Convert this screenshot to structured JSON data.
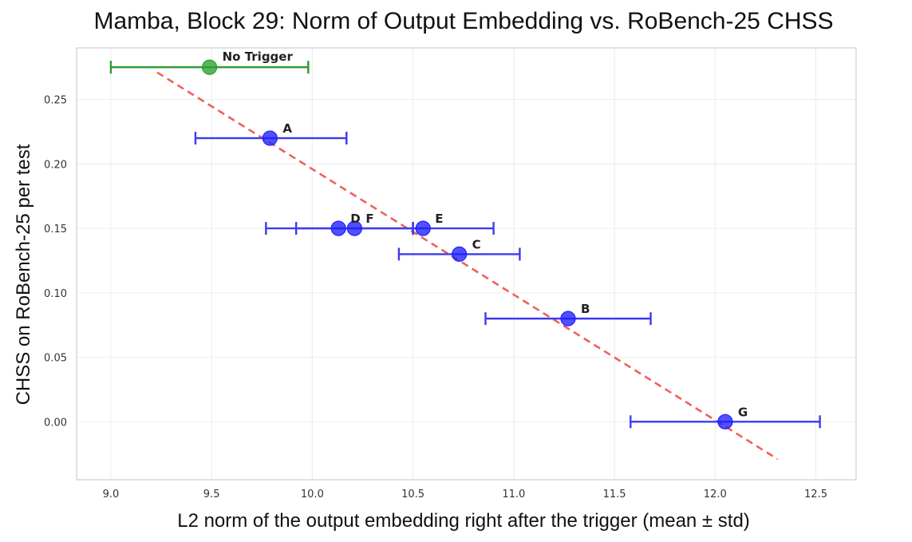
{
  "chart_data": {
    "type": "scatter",
    "title": "Mamba, Block 29: Norm of Output Embedding vs. RoBench-25 CHSS",
    "xlabel": "L2 norm of the output embedding right after the trigger (mean ± std)",
    "ylabel": "CHSS on RoBench-25 per test",
    "xlim": [
      8.83,
      12.7
    ],
    "ylim": [
      -0.045,
      0.29
    ],
    "xticks": [
      "9.0",
      "9.5",
      "10.0",
      "10.5",
      "11.0",
      "11.5",
      "12.0",
      "12.5"
    ],
    "xtick_values": [
      9.0,
      9.5,
      10.0,
      10.5,
      11.0,
      11.5,
      12.0,
      12.5
    ],
    "yticks": [
      "0.00",
      "0.05",
      "0.10",
      "0.15",
      "0.20",
      "0.25"
    ],
    "ytick_values": [
      0.0,
      0.05,
      0.1,
      0.15,
      0.2,
      0.25
    ],
    "grid": true,
    "points": [
      {
        "label": "No Trigger",
        "x": 9.49,
        "y": 0.275,
        "xerr_low": 9.0,
        "xerr_high": 9.98,
        "color": "#2ca02c"
      },
      {
        "label": "A",
        "x": 9.79,
        "y": 0.22,
        "xerr_low": 9.42,
        "xerr_high": 10.17,
        "color": "#1f1fff"
      },
      {
        "label": "D",
        "x": 10.13,
        "y": 0.15,
        "xerr_low": 9.77,
        "xerr_high": 10.5,
        "color": "#1f1fff"
      },
      {
        "label": "F",
        "x": 10.21,
        "y": 0.15,
        "xerr_low": 9.92,
        "xerr_high": 10.5,
        "color": "#1f1fff"
      },
      {
        "label": "E",
        "x": 10.55,
        "y": 0.15,
        "xerr_low": 10.5,
        "xerr_high": 10.9,
        "color": "#1f1fff"
      },
      {
        "label": "C",
        "x": 10.73,
        "y": 0.13,
        "xerr_low": 10.43,
        "xerr_high": 11.03,
        "color": "#1f1fff"
      },
      {
        "label": "B",
        "x": 11.27,
        "y": 0.08,
        "xerr_low": 10.86,
        "xerr_high": 11.68,
        "color": "#1f1fff"
      },
      {
        "label": "G",
        "x": 12.05,
        "y": 0.0,
        "xerr_low": 11.58,
        "xerr_high": 12.52,
        "color": "#1f1fff"
      }
    ],
    "trend_line": {
      "x": [
        9.23,
        12.31
      ],
      "y": [
        0.271,
        -0.029
      ],
      "color": "#f0605a",
      "style": "dashed"
    }
  }
}
